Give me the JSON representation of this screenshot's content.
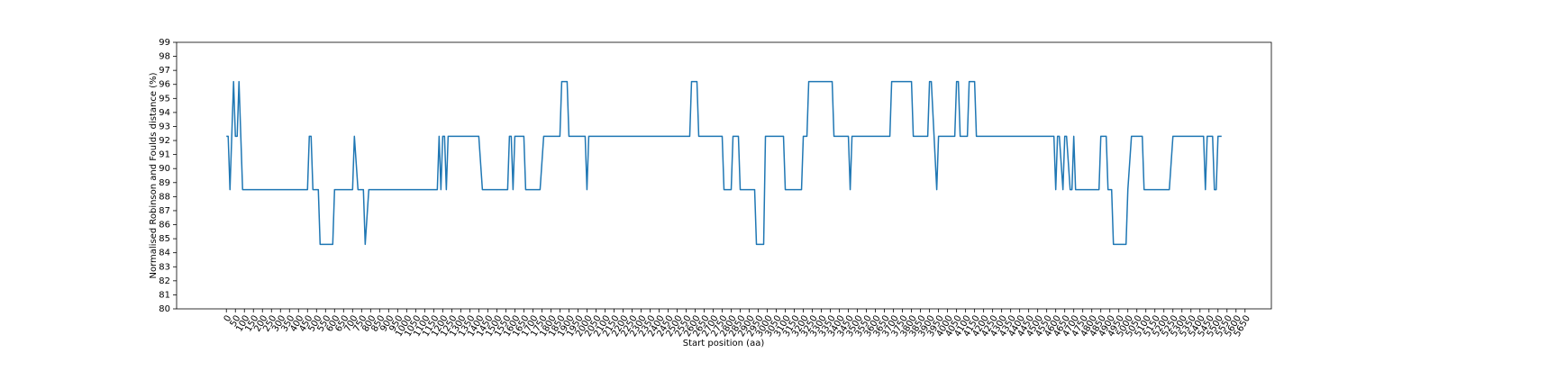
{
  "chart_data": {
    "type": "line",
    "xlabel": "Start position (aa)",
    "ylabel": "Normalised Robinson and Foulds distance (%)",
    "color": "#1f77b4",
    "x": [
      0,
      10,
      20,
      40,
      50,
      60,
      70,
      90,
      450,
      460,
      470,
      480,
      510,
      520,
      590,
      600,
      700,
      710,
      730,
      760,
      770,
      790,
      1170,
      1180,
      1190,
      1200,
      1210,
      1220,
      1230,
      1400,
      1420,
      1560,
      1570,
      1580,
      1590,
      1600,
      1650,
      1660,
      1740,
      1760,
      1850,
      1860,
      1890,
      1900,
      1990,
      2000,
      2010,
      2570,
      2580,
      2610,
      2620,
      2750,
      2760,
      2800,
      2810,
      2840,
      2850,
      2930,
      2940,
      2980,
      2990,
      3090,
      3100,
      3190,
      3200,
      3220,
      3230,
      3360,
      3370,
      3450,
      3460,
      3470,
      3680,
      3690,
      3800,
      3810,
      3890,
      3900,
      3910,
      3940,
      3950,
      4040,
      4050,
      4060,
      4070,
      4110,
      4120,
      4150,
      4160,
      4590,
      4600,
      4610,
      4620,
      4640,
      4650,
      4660,
      4680,
      4690,
      4700,
      4710,
      4840,
      4850,
      4880,
      4890,
      4910,
      4920,
      4990,
      5000,
      5020,
      5080,
      5090,
      5230,
      5250,
      5420,
      5430,
      5440,
      5470,
      5480,
      5490,
      5500,
      5520
    ],
    "values": [
      92.3,
      92.3,
      88.5,
      96.2,
      92.3,
      92.3,
      96.2,
      88.5,
      88.5,
      92.3,
      92.3,
      88.5,
      88.5,
      84.6,
      84.6,
      88.5,
      88.5,
      92.3,
      88.5,
      88.5,
      84.6,
      88.5,
      88.5,
      92.3,
      88.5,
      92.3,
      92.3,
      88.5,
      92.3,
      92.3,
      88.5,
      88.5,
      92.3,
      92.3,
      88.5,
      92.3,
      92.3,
      88.5,
      88.5,
      92.3,
      92.3,
      96.2,
      96.2,
      92.3,
      92.3,
      88.5,
      92.3,
      92.3,
      96.2,
      96.2,
      92.3,
      92.3,
      88.5,
      88.5,
      92.3,
      92.3,
      88.5,
      88.5,
      84.6,
      84.6,
      92.3,
      92.3,
      88.5,
      88.5,
      92.3,
      92.3,
      96.2,
      96.2,
      92.3,
      92.3,
      88.5,
      92.3,
      92.3,
      96.2,
      96.2,
      92.3,
      92.3,
      96.2,
      96.2,
      88.5,
      92.3,
      92.3,
      96.2,
      96.2,
      92.3,
      92.3,
      96.2,
      96.2,
      92.3,
      92.3,
      88.5,
      92.3,
      92.3,
      88.5,
      92.3,
      92.3,
      88.5,
      88.5,
      92.3,
      88.5,
      88.5,
      92.3,
      92.3,
      88.5,
      88.5,
      84.6,
      84.6,
      88.5,
      92.3,
      92.3,
      88.5,
      88.5,
      92.3,
      92.3,
      88.5,
      92.3,
      92.3,
      88.5,
      88.5,
      92.3,
      92.3
    ],
    "xlim": [
      -276,
      5796
    ],
    "ylim": [
      80,
      99
    ],
    "xticks": [
      0,
      50,
      100,
      150,
      200,
      250,
      300,
      350,
      400,
      450,
      500,
      550,
      600,
      650,
      700,
      750,
      800,
      850,
      900,
      950,
      1000,
      1050,
      1100,
      1150,
      1200,
      1250,
      1300,
      1350,
      1400,
      1450,
      1500,
      1550,
      1600,
      1650,
      1700,
      1750,
      1800,
      1850,
      1900,
      1950,
      2000,
      2050,
      2100,
      2150,
      2200,
      2250,
      2300,
      2350,
      2400,
      2450,
      2500,
      2550,
      2600,
      2650,
      2700,
      2750,
      2800,
      2850,
      2900,
      2950,
      3000,
      3050,
      3100,
      3150,
      3200,
      3250,
      3300,
      3350,
      3400,
      3450,
      3500,
      3550,
      3600,
      3650,
      3700,
      3750,
      3800,
      3850,
      3900,
      3950,
      4000,
      4050,
      4100,
      4150,
      4200,
      4250,
      4300,
      4350,
      4400,
      4450,
      4500,
      4550,
      4600,
      4650,
      4700,
      4750,
      4800,
      4850,
      4900,
      4950,
      5000,
      5050,
      5100,
      5150,
      5200,
      5250,
      5300,
      5350,
      5400,
      5450,
      5500,
      5550,
      5600,
      5650
    ],
    "yticks": [
      80,
      81,
      82,
      83,
      84,
      85,
      86,
      87,
      88,
      89,
      90,
      91,
      92,
      93,
      94,
      95,
      96,
      97,
      98,
      99
    ]
  }
}
